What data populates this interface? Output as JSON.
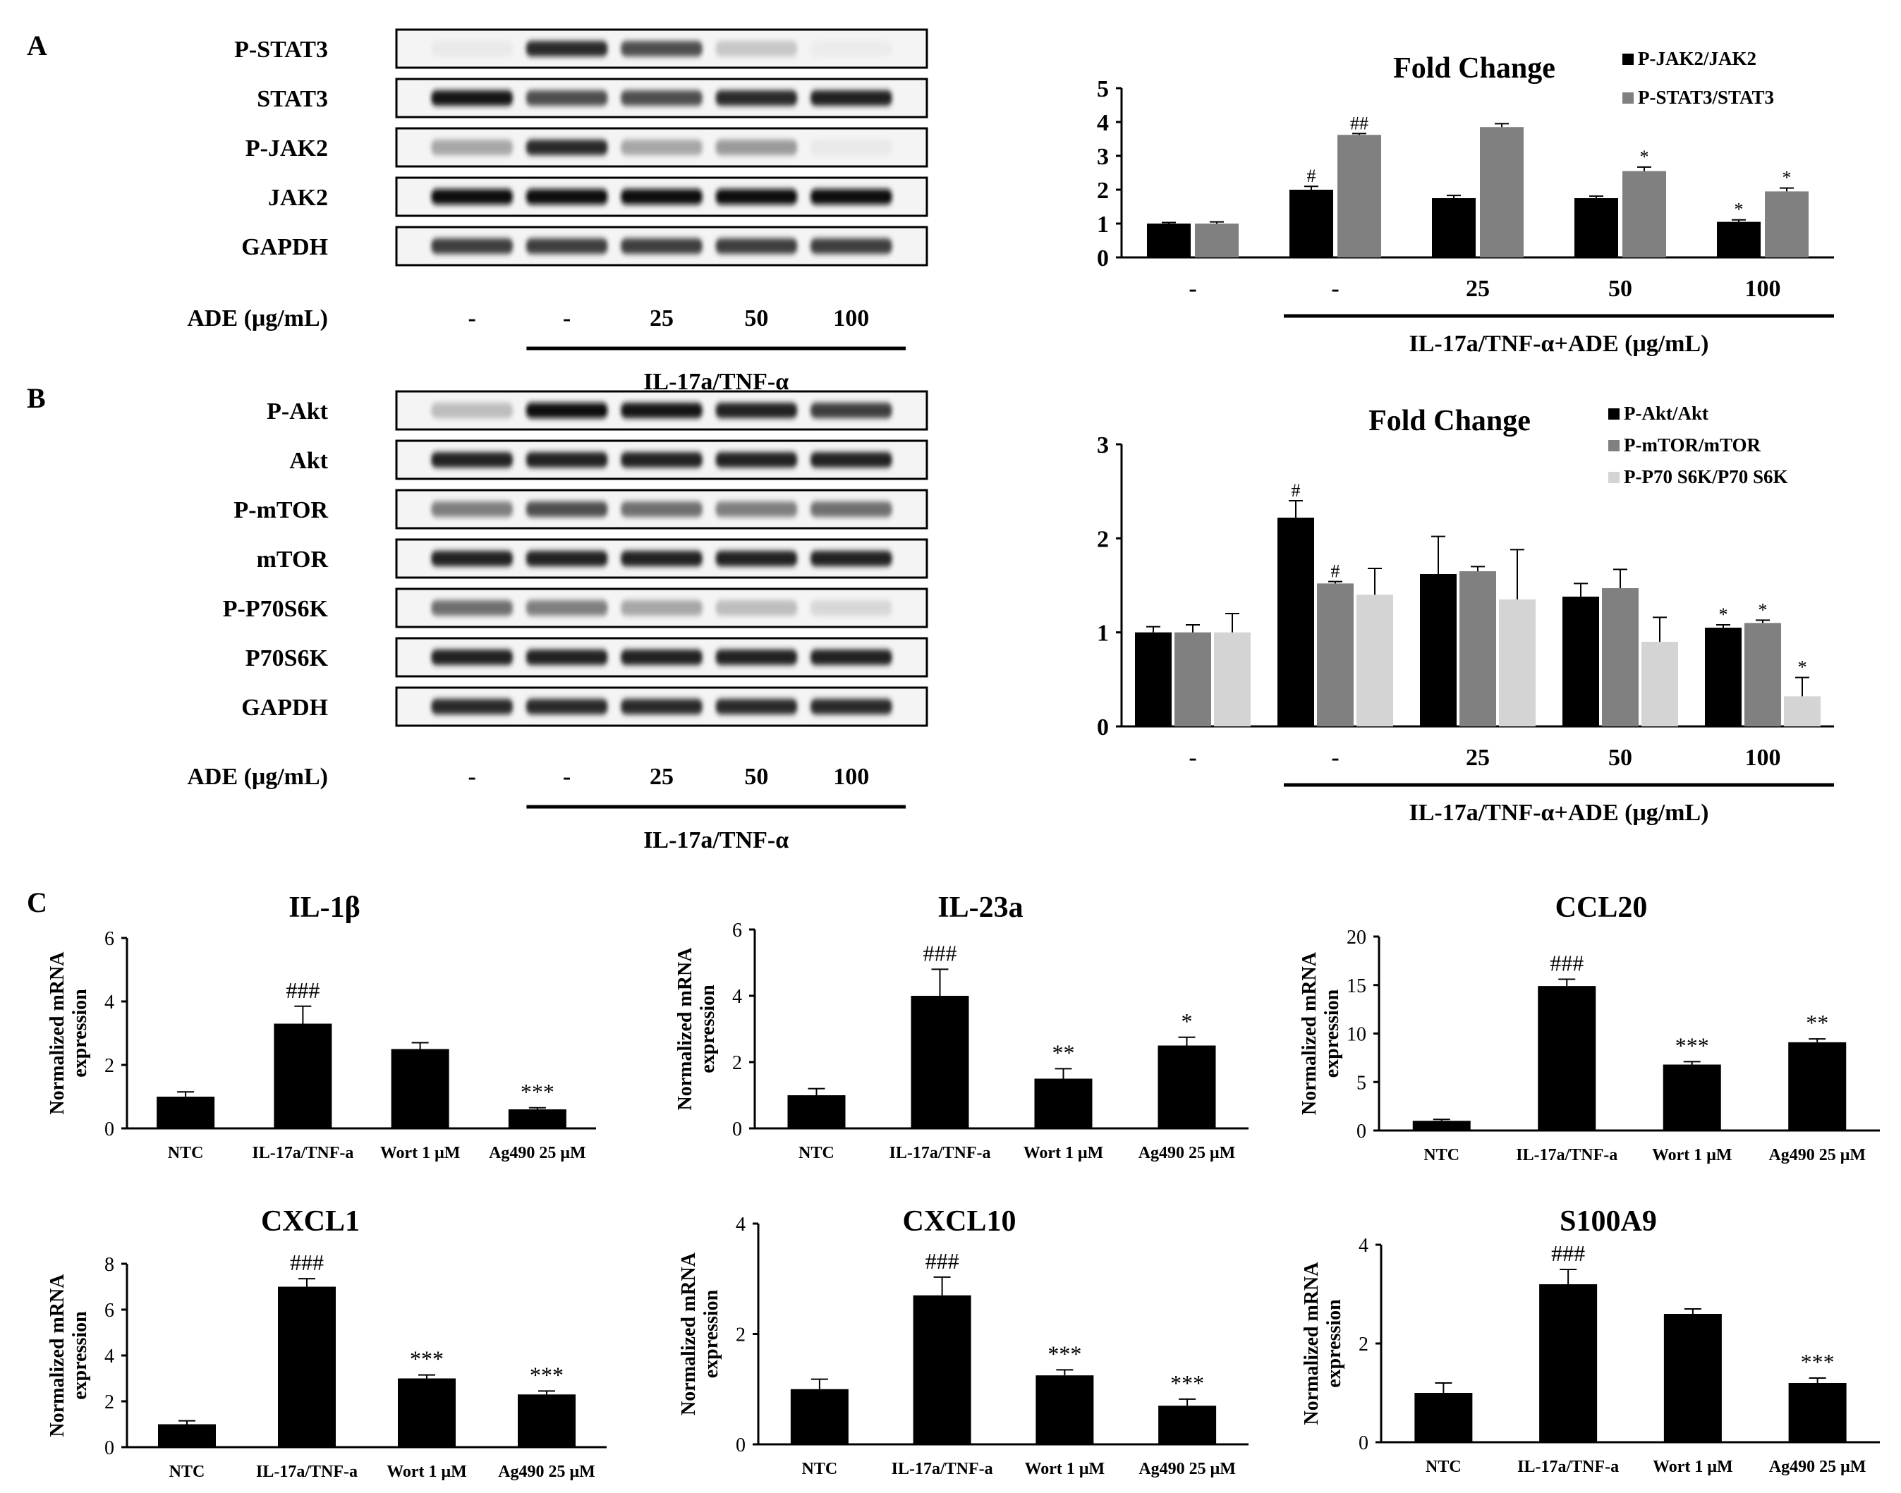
{
  "panels": {
    "A": "A",
    "B": "B",
    "C": "C"
  },
  "blots": {
    "A": {
      "rows": [
        {
          "label": "P-STAT3",
          "bands": [
            0.05,
            0.85,
            0.75,
            0.3,
            0.02
          ]
        },
        {
          "label": "STAT3",
          "bands": [
            0.95,
            0.75,
            0.75,
            0.85,
            0.9
          ]
        },
        {
          "label": "P-JAK2",
          "bands": [
            0.45,
            0.85,
            0.45,
            0.5,
            0.05
          ]
        },
        {
          "label": "JAK2",
          "bands": [
            1,
            1,
            1,
            1,
            1
          ]
        },
        {
          "label": "GAPDH",
          "bands": [
            0.8,
            0.8,
            0.8,
            0.8,
            0.8
          ]
        }
      ],
      "dose_label": "ADE (μg/mL)",
      "doses": [
        "-",
        "-",
        "25",
        "50",
        "100"
      ],
      "treatment": "IL-17a/TNF-α"
    },
    "B": {
      "rows": [
        {
          "label": "P-Akt",
          "bands": [
            0.35,
            1,
            0.95,
            0.9,
            0.8
          ]
        },
        {
          "label": "Akt",
          "bands": [
            0.9,
            0.9,
            0.9,
            0.9,
            0.9
          ]
        },
        {
          "label": "P-mTOR",
          "bands": [
            0.6,
            0.75,
            0.65,
            0.6,
            0.65
          ]
        },
        {
          "label": "mTOR",
          "bands": [
            0.9,
            0.9,
            0.9,
            0.9,
            0.9
          ]
        },
        {
          "label": "P-P70S6K",
          "bands": [
            0.65,
            0.6,
            0.45,
            0.35,
            0.2
          ]
        },
        {
          "label": "P70S6K",
          "bands": [
            0.9,
            0.9,
            0.9,
            0.9,
            0.9
          ]
        },
        {
          "label": "GAPDH",
          "bands": [
            0.85,
            0.85,
            0.85,
            0.85,
            0.85
          ]
        }
      ],
      "dose_label": "ADE (μg/mL)",
      "doses": [
        "-",
        "-",
        "25",
        "50",
        "100"
      ],
      "treatment": "IL-17a/TNF-α"
    }
  },
  "colors": {
    "black": "#000000",
    "dark_gray": "#808080",
    "light_gray": "#d4d4d4"
  },
  "chart_data": [
    {
      "id": "A-fold-change",
      "type": "bar",
      "title": "Fold Change",
      "categories": [
        "-",
        "-",
        "25",
        "50",
        "100"
      ],
      "xlabel": "IL-17a/TNF-α+ADE (μg/mL)",
      "ylim": [
        0,
        5
      ],
      "yticks": [
        0,
        1,
        2,
        3,
        4,
        5
      ],
      "legend_position": "top-right",
      "series": [
        {
          "name": "P-JAK2/JAK2",
          "color": "#000000",
          "values": [
            1.0,
            2.0,
            1.75,
            1.75,
            1.05
          ],
          "errors": [
            0.03,
            0.1,
            0.08,
            0.06,
            0.06
          ],
          "marks": [
            "",
            "#",
            "",
            "",
            "*"
          ]
        },
        {
          "name": "P-STAT3/STAT3",
          "color": "#808080",
          "values": [
            1.0,
            3.62,
            3.85,
            2.55,
            1.95
          ],
          "errors": [
            0.05,
            0.04,
            0.1,
            0.12,
            0.1
          ],
          "marks": [
            "",
            "##",
            "",
            "*",
            "*"
          ]
        }
      ]
    },
    {
      "id": "B-fold-change",
      "type": "bar",
      "title": "Fold Change",
      "categories": [
        "-",
        "-",
        "25",
        "50",
        "100"
      ],
      "xlabel": "IL-17a/TNF-α+ADE (μg/mL)",
      "ylim": [
        0,
        3
      ],
      "yticks": [
        0,
        1,
        2,
        3
      ],
      "legend_position": "top-right",
      "series": [
        {
          "name": "P-Akt/Akt",
          "color": "#000000",
          "values": [
            1.0,
            2.22,
            1.62,
            1.38,
            1.05
          ],
          "errors": [
            0.06,
            0.18,
            0.4,
            0.14,
            0.03
          ],
          "marks": [
            "",
            "#",
            "",
            "",
            "*"
          ]
        },
        {
          "name": "P-mTOR/mTOR",
          "color": "#808080",
          "values": [
            1.0,
            1.52,
            1.65,
            1.47,
            1.1
          ],
          "errors": [
            0.08,
            0.02,
            0.05,
            0.2,
            0.03
          ],
          "marks": [
            "",
            "#",
            "",
            "",
            "*"
          ]
        },
        {
          "name": "P-P70 S6K/P70 S6K",
          "color": "#d4d4d4",
          "values": [
            1.0,
            1.4,
            1.35,
            0.9,
            0.32
          ],
          "errors": [
            0.2,
            0.28,
            0.53,
            0.26,
            0.2
          ],
          "marks": [
            "",
            "",
            "",
            "",
            "*"
          ]
        }
      ]
    },
    {
      "id": "C-IL1b",
      "type": "bar",
      "title": "IL-1β",
      "ylabel": "Normalized mRNA expression",
      "categories": [
        "NTC",
        "IL-17a/TNF-a",
        "Wort 1 μM",
        "Ag490 25 μM"
      ],
      "values": [
        1.0,
        3.3,
        2.5,
        0.6
      ],
      "errors": [
        0.15,
        0.55,
        0.2,
        0.05
      ],
      "marks": [
        "",
        "###",
        "",
        "***"
      ],
      "ylim": [
        0,
        6
      ],
      "yticks": [
        0,
        2,
        4,
        6
      ]
    },
    {
      "id": "C-IL23a",
      "type": "bar",
      "title": "IL-23a",
      "ylabel": "Normalized mRNA expression",
      "categories": [
        "NTC",
        "IL-17a/TNF-a",
        "Wort 1 μM",
        "Ag490 25 μM"
      ],
      "values": [
        1.0,
        4.0,
        1.5,
        2.5
      ],
      "errors": [
        0.2,
        0.8,
        0.3,
        0.25
      ],
      "marks": [
        "",
        "###",
        "**",
        "*"
      ],
      "ylim": [
        0,
        6
      ],
      "yticks": [
        0,
        2,
        4,
        6
      ]
    },
    {
      "id": "C-CCL20",
      "type": "bar",
      "title": "CCL20",
      "ylabel": "Normalized mRNA expression",
      "categories": [
        "NTC",
        "IL-17a/TNF-a",
        "Wort 1 μM",
        "Ag490 25 μM"
      ],
      "values": [
        1.0,
        14.9,
        6.8,
        9.1
      ],
      "errors": [
        0.15,
        0.7,
        0.3,
        0.35
      ],
      "marks": [
        "",
        "###",
        "***",
        "**"
      ],
      "ylim": [
        0,
        20
      ],
      "yticks": [
        0,
        5,
        10,
        15,
        20
      ]
    },
    {
      "id": "C-CXCL1",
      "type": "bar",
      "title": "CXCL1",
      "ylabel": "Normalized mRNA expression",
      "categories": [
        "NTC",
        "IL-17a/TNF-a",
        "Wort 1 μM",
        "Ag490 25 μM"
      ],
      "values": [
        1.0,
        7.0,
        3.0,
        2.3
      ],
      "errors": [
        0.15,
        0.35,
        0.15,
        0.15
      ],
      "marks": [
        "",
        "###",
        "***",
        "***"
      ],
      "ylim": [
        0,
        8
      ],
      "yticks": [
        0,
        2,
        4,
        6,
        8
      ]
    },
    {
      "id": "C-CXCL10",
      "type": "bar",
      "title": "CXCL10",
      "ylabel": "Normalized mRNA expression",
      "categories": [
        "NTC",
        "IL-17a/TNF-a",
        "Wort 1 μM",
        "Ag490 25 μM"
      ],
      "values": [
        1.0,
        2.7,
        1.25,
        0.7
      ],
      "errors": [
        0.18,
        0.33,
        0.1,
        0.12
      ],
      "marks": [
        "",
        "###",
        "***",
        "***"
      ],
      "ylim": [
        0,
        4
      ],
      "yticks": [
        0,
        2,
        4
      ]
    },
    {
      "id": "C-S100A9",
      "type": "bar",
      "title": "S100A9",
      "ylabel": "Normalized mRNA expression",
      "categories": [
        "NTC",
        "IL-17a/TNF-a",
        "Wort 1 μM",
        "Ag490 25 μM"
      ],
      "values": [
        1.0,
        3.2,
        2.6,
        1.2
      ],
      "errors": [
        0.2,
        0.3,
        0.1,
        0.1
      ],
      "marks": [
        "",
        "###",
        "",
        "***"
      ],
      "ylim": [
        0,
        4
      ],
      "yticks": [
        0,
        2,
        4
      ]
    }
  ]
}
